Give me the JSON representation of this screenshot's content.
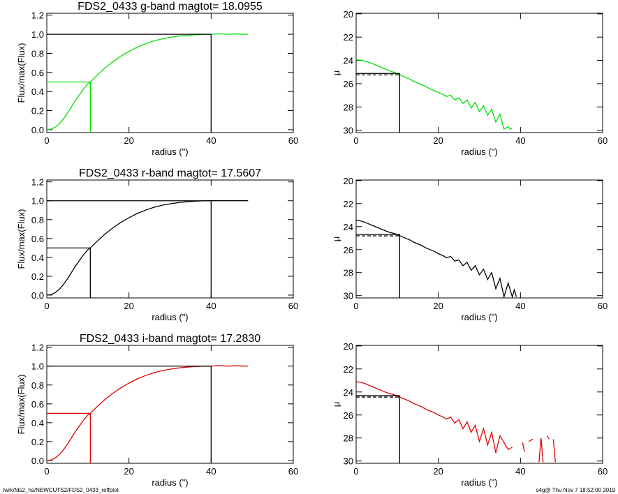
{
  "footer": {
    "left": "/wrk/fds2_hs/NEWCUTS2/FDS2_0433_reffplot",
    "right": "s4g@  Thu Nov  7 18:52:00 2019"
  },
  "chart_data": [
    {
      "type": "line",
      "panel": "growth-curve",
      "title": "FDS2_0433 g-band  magtot=     18.0955",
      "xlabel": "radius (\")",
      "ylabel": "Flux/max(Flux)",
      "xlim": [
        0,
        60
      ],
      "ylim": [
        -0.03,
        1.22
      ],
      "xticks": [
        0,
        20,
        40,
        60
      ],
      "yticks": [
        0.0,
        0.2,
        0.4,
        0.6,
        0.8,
        1.0,
        1.2
      ],
      "ytick_labels": [
        "0.0",
        "0.2",
        "0.4",
        "0.6",
        "0.8",
        "1.0",
        "1.2"
      ],
      "color": "#00e000",
      "series": [
        {
          "x": [
            0,
            1,
            2,
            3,
            4,
            5,
            6,
            7,
            8,
            9,
            10,
            10.6,
            12,
            14,
            16,
            18,
            20,
            22,
            24,
            26,
            28,
            30,
            32,
            34,
            36,
            38,
            40,
            42,
            44,
            46,
            48,
            49
          ],
          "y": [
            0,
            0.005,
            0.025,
            0.06,
            0.11,
            0.17,
            0.24,
            0.31,
            0.37,
            0.43,
            0.48,
            0.5,
            0.56,
            0.64,
            0.71,
            0.77,
            0.82,
            0.865,
            0.9,
            0.93,
            0.952,
            0.968,
            0.98,
            0.989,
            0.995,
            0.999,
            1.0,
            1.004,
            1.0,
            1.003,
            1.0,
            1.0
          ]
        }
      ],
      "half_light": {
        "r_half": 10.6,
        "frac": 0.5
      },
      "total": {
        "r_total": 40,
        "frac": 1.0
      }
    },
    {
      "type": "line",
      "panel": "surface-brightness",
      "xlabel": "radius (\")",
      "ylabel": "μ",
      "xlim": [
        0,
        60
      ],
      "ylim": [
        30.2,
        19.95
      ],
      "xticks": [
        0,
        20,
        40,
        60
      ],
      "yticks": [
        20,
        22,
        24,
        26,
        28,
        30
      ],
      "color": "#00e000",
      "series": [
        {
          "x": [
            0,
            1,
            2,
            3,
            4,
            5,
            6,
            7,
            8,
            9,
            10,
            11,
            12,
            13,
            14,
            15,
            16,
            17,
            18,
            19,
            20,
            21,
            22,
            23,
            24,
            25,
            26,
            27,
            28,
            29,
            30,
            31,
            32,
            33,
            34,
            35,
            36,
            37,
            37.5,
            38
          ],
          "y": [
            23.95,
            23.98,
            24.05,
            24.15,
            24.28,
            24.42,
            24.58,
            24.74,
            24.88,
            25.0,
            25.12,
            25.3,
            25.45,
            25.6,
            25.8,
            25.95,
            26.1,
            26.25,
            26.45,
            26.6,
            26.75,
            26.9,
            27.1,
            27.0,
            27.4,
            27.2,
            27.7,
            27.4,
            28.1,
            27.6,
            28.4,
            27.9,
            28.7,
            28.2,
            29.3,
            28.6,
            29.9,
            29.7,
            29.9,
            29.8
          ]
        }
      ],
      "mean_sb": {
        "mu": 25.12,
        "r_end": 10.6
      },
      "r_half": 10.6
    },
    {
      "type": "line",
      "panel": "growth-curve",
      "title": "FDS2_0433 r-band  magtot=     17.5607",
      "xlabel": "radius (\")",
      "ylabel": "Flux/max(Flux)",
      "xlim": [
        0,
        60
      ],
      "ylim": [
        -0.03,
        1.22
      ],
      "xticks": [
        0,
        20,
        40,
        60
      ],
      "yticks": [
        0.0,
        0.2,
        0.4,
        0.6,
        0.8,
        1.0,
        1.2
      ],
      "ytick_labels": [
        "0.0",
        "0.2",
        "0.4",
        "0.6",
        "0.8",
        "1.0",
        "1.2"
      ],
      "color": "#000000",
      "series": [
        {
          "x": [
            0,
            1,
            2,
            3,
            4,
            5,
            6,
            7,
            8,
            9,
            10,
            10.6,
            12,
            14,
            16,
            18,
            20,
            22,
            24,
            26,
            28,
            30,
            32,
            34,
            36,
            38,
            40,
            42,
            44,
            46,
            48,
            49
          ],
          "y": [
            0,
            0.005,
            0.025,
            0.06,
            0.11,
            0.17,
            0.24,
            0.31,
            0.37,
            0.43,
            0.48,
            0.5,
            0.56,
            0.64,
            0.71,
            0.77,
            0.82,
            0.865,
            0.9,
            0.93,
            0.952,
            0.968,
            0.98,
            0.989,
            0.995,
            0.999,
            1.0,
            1.0,
            1.0,
            1.0,
            1.0,
            1.0
          ]
        }
      ],
      "half_light": {
        "r_half": 10.6,
        "frac": 0.5
      },
      "total": {
        "r_total": 40,
        "frac": 1.0
      }
    },
    {
      "type": "line",
      "panel": "surface-brightness",
      "xlabel": "radius (\")",
      "ylabel": "μ",
      "xlim": [
        0,
        60
      ],
      "ylim": [
        30.2,
        19.95
      ],
      "xticks": [
        0,
        20,
        40,
        60
      ],
      "yticks": [
        20,
        22,
        24,
        26,
        28,
        30
      ],
      "color": "#000000",
      "series": [
        {
          "x": [
            0,
            1,
            2,
            3,
            4,
            5,
            6,
            7,
            8,
            9,
            10,
            11,
            12,
            13,
            14,
            15,
            16,
            17,
            18,
            19,
            20,
            21,
            22,
            23,
            24,
            25,
            26,
            27,
            28,
            29,
            30,
            31,
            32,
            33,
            34,
            35,
            36,
            37,
            38,
            38.5,
            39
          ],
          "y": [
            23.45,
            23.5,
            23.6,
            23.75,
            23.9,
            24.05,
            24.2,
            24.35,
            24.48,
            24.58,
            24.68,
            24.85,
            25.0,
            25.15,
            25.35,
            25.5,
            25.65,
            25.85,
            26.0,
            26.15,
            26.35,
            26.5,
            26.7,
            26.6,
            27.0,
            26.9,
            27.4,
            27.1,
            27.8,
            27.4,
            28.2,
            27.7,
            28.6,
            28.0,
            29.4,
            28.5,
            30.1,
            28.9,
            30.1,
            29.5,
            30.1
          ]
        }
      ],
      "mean_sb": {
        "mu": 24.68,
        "r_end": 10.6
      },
      "r_half": 10.6
    },
    {
      "type": "line",
      "panel": "growth-curve",
      "title": "FDS2_0433 i-band  magtot=     17.2830",
      "xlabel": "radius (\")",
      "ylabel": "Flux/max(Flux)",
      "xlim": [
        0,
        60
      ],
      "ylim": [
        -0.03,
        1.22
      ],
      "xticks": [
        0,
        20,
        40,
        60
      ],
      "yticks": [
        0.0,
        0.2,
        0.4,
        0.6,
        0.8,
        1.0,
        1.2
      ],
      "ytick_labels": [
        "0.0",
        "0.2",
        "0.4",
        "0.6",
        "0.8",
        "1.0",
        "1.2"
      ],
      "color": "#e00000",
      "series": [
        {
          "x": [
            0,
            1,
            2,
            3,
            4,
            5,
            6,
            7,
            8,
            9,
            10,
            10.6,
            12,
            14,
            16,
            18,
            20,
            22,
            24,
            26,
            28,
            30,
            32,
            34,
            36,
            38,
            40,
            42,
            44,
            46,
            48,
            49
          ],
          "y": [
            0,
            0.005,
            0.025,
            0.06,
            0.11,
            0.17,
            0.24,
            0.31,
            0.37,
            0.43,
            0.48,
            0.5,
            0.56,
            0.64,
            0.71,
            0.77,
            0.82,
            0.865,
            0.9,
            0.93,
            0.952,
            0.968,
            0.98,
            0.989,
            0.995,
            0.999,
            1.0,
            1.006,
            1.0,
            1.004,
            1.0,
            1.0
          ]
        }
      ],
      "half_light": {
        "r_half": 10.6,
        "frac": 0.5
      },
      "total": {
        "r_total": 40,
        "frac": 1.0
      }
    },
    {
      "type": "line",
      "panel": "surface-brightness",
      "xlabel": "radius (\")",
      "ylabel": "μ",
      "xlim": [
        0,
        60
      ],
      "ylim": [
        30.2,
        19.95
      ],
      "xticks": [
        0,
        20,
        40,
        60
      ],
      "yticks": [
        20,
        22,
        24,
        26,
        28,
        30
      ],
      "color": "#e00000",
      "series": [
        {
          "x": [
            0,
            1,
            2,
            3,
            4,
            5,
            6,
            7,
            8,
            9,
            10,
            11,
            12,
            13,
            14,
            15,
            16,
            17,
            18,
            19,
            20,
            21,
            22,
            23,
            24,
            25,
            26,
            27,
            28,
            29,
            30,
            31,
            32,
            33,
            34,
            35,
            36,
            37,
            38
          ],
          "y": [
            23.1,
            23.15,
            23.25,
            23.4,
            23.55,
            23.7,
            23.85,
            24.0,
            24.12,
            24.22,
            24.32,
            24.5,
            24.65,
            24.8,
            25.0,
            25.15,
            25.3,
            25.5,
            25.65,
            25.8,
            26.0,
            26.15,
            26.35,
            26.2,
            26.7,
            26.4,
            27.2,
            26.6,
            27.5,
            26.9,
            28.3,
            27.2,
            28.6,
            27.5,
            29.3,
            27.8,
            28.4,
            29.0,
            28.8
          ]
        },
        {
          "x": [
            40.5,
            41
          ],
          "y": [
            28.4,
            29.2
          ]
        },
        {
          "x": [
            42,
            43
          ],
          "y": [
            28.3,
            28.1
          ]
        },
        {
          "x": [
            44.5,
            45,
            45.5
          ],
          "y": [
            30.1,
            28.0,
            30.1
          ]
        },
        {
          "x": [
            46.5,
            47
          ],
          "y": [
            27.8,
            28.1
          ]
        },
        {
          "x": [
            48,
            48.5
          ],
          "y": [
            28.1,
            30.1
          ]
        }
      ],
      "mean_sb": {
        "mu": 24.32,
        "r_end": 10.6
      },
      "r_half": 10.6
    }
  ]
}
